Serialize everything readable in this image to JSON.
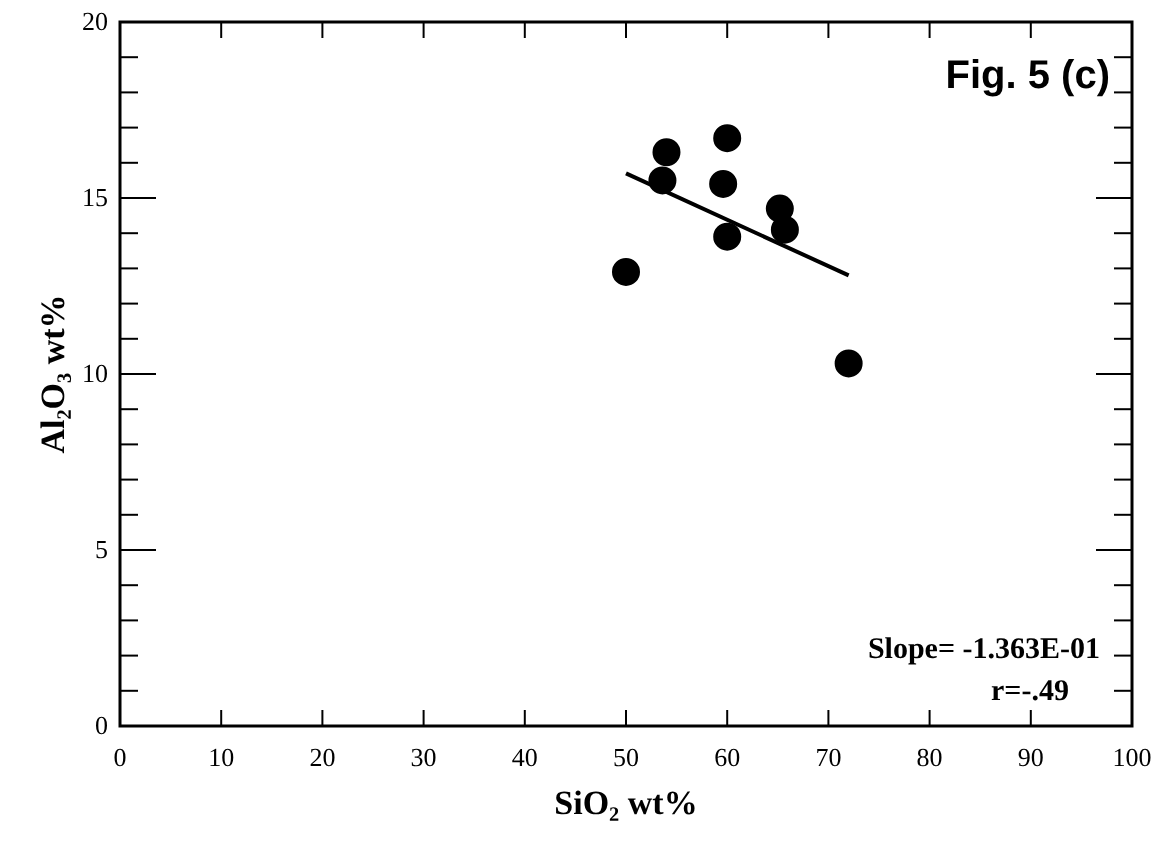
{
  "chart_data": {
    "type": "scatter",
    "xlabel": "SiO₂ wt%",
    "ylabel": "Al₂O₃ wt%",
    "xlim": [
      0,
      100
    ],
    "ylim": [
      0,
      20
    ],
    "xticks": [
      0,
      10,
      20,
      30,
      40,
      50,
      60,
      70,
      80,
      90,
      100
    ],
    "yticks": [
      0,
      {
        "value": 1,
        "label": null
      },
      {
        "value": 2,
        "label": null
      },
      {
        "value": 3,
        "label": null
      },
      {
        "value": 4,
        "label": null
      },
      5,
      {
        "value": 6,
        "label": null
      },
      {
        "value": 7,
        "label": null
      },
      {
        "value": 8,
        "label": null
      },
      {
        "value": 9,
        "label": null
      },
      10,
      {
        "value": 11,
        "label": null
      },
      {
        "value": 12,
        "label": null
      },
      {
        "value": 13,
        "label": null
      },
      {
        "value": 14,
        "label": null
      },
      15,
      {
        "value": 16,
        "label": null
      },
      {
        "value": 17,
        "label": null
      },
      {
        "value": 18,
        "label": null
      },
      {
        "value": 19,
        "label": null
      },
      20
    ],
    "grid": false,
    "series": [
      {
        "marker": "circle",
        "color": "#000000",
        "x": [
          50,
          54,
          53.6,
          60,
          59.6,
          60,
          65.2,
          65.7,
          72
        ],
        "values": [
          12.9,
          16.3,
          15.5,
          16.7,
          15.4,
          13.9,
          14.7,
          14.1,
          10.3
        ]
      },
      {
        "type": "line",
        "color": "#000000",
        "x": [
          50,
          72
        ],
        "values": [
          15.7,
          12.8
        ]
      }
    ],
    "annotations": [
      "Fig. 5 (c)",
      "Slope= -1.363E-01",
      "r=-.49"
    ]
  }
}
